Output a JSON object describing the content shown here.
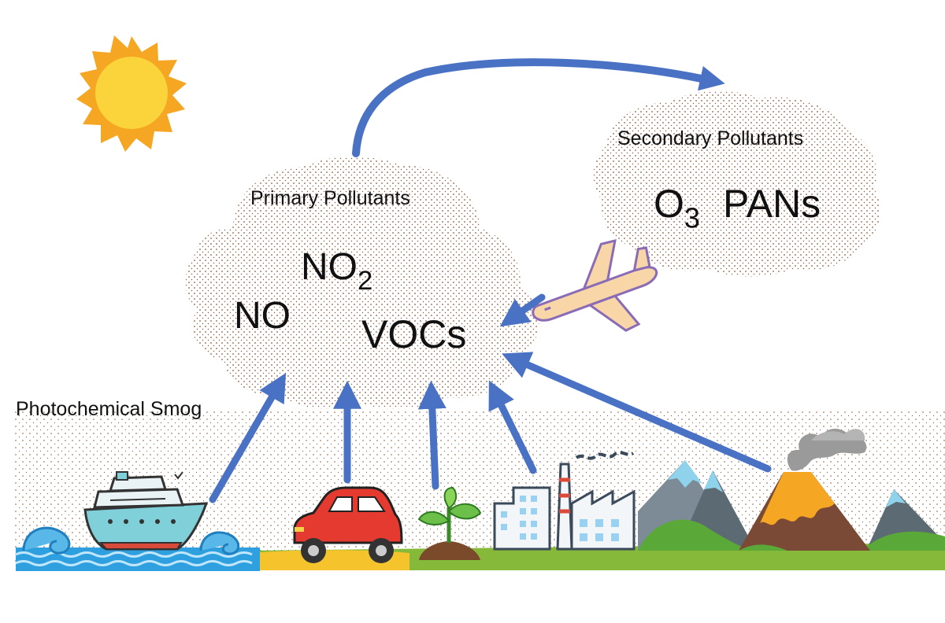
{
  "labels": {
    "smog": "Photochemical Smog",
    "primary": "Primary Pollutants",
    "secondary": "Secondary Pollutants",
    "no2_base": "NO",
    "no2_sub": "2",
    "no": "NO",
    "vocs": "VOCs",
    "o3_base": "O",
    "o3_sub": "3",
    "pans": "PANs"
  },
  "icons": [
    "sun-icon",
    "airplane-icon",
    "ship-icon",
    "car-icon",
    "plant-icon",
    "factory-icon",
    "mountain-icon",
    "volcano-icon"
  ],
  "colors": {
    "arrow": "#4a72c4",
    "sun": "#fbd33a",
    "sun_rays": "#f5a623",
    "smog_dots": "#8a5a3a",
    "ground": "#86b83a",
    "water": "#2ea0e0"
  }
}
